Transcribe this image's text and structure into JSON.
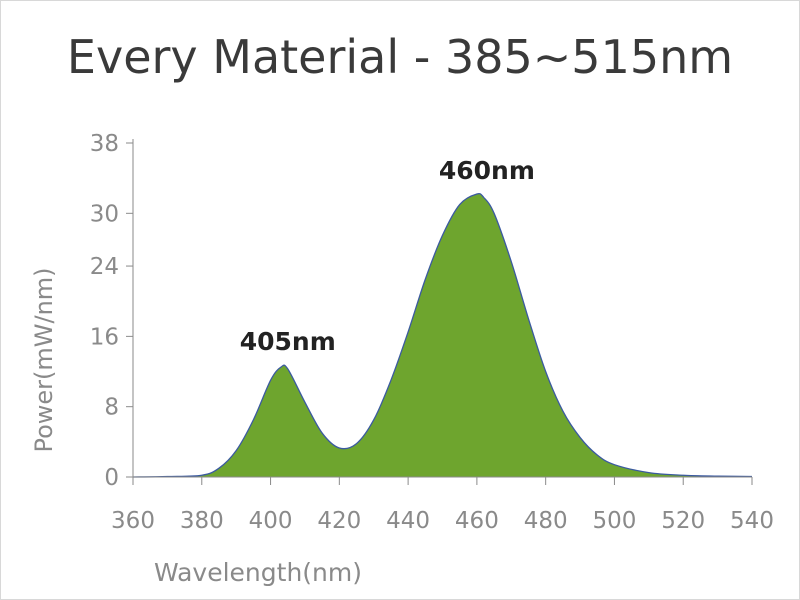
{
  "chart_data": {
    "type": "area",
    "title": "Every Material - 385~515nm",
    "xlabel": "Wavelength(nm)",
    "ylabel": "Power(mW/nm)",
    "xlim": [
      360,
      540
    ],
    "ylim": [
      0,
      38
    ],
    "xticks": [
      360,
      380,
      400,
      420,
      440,
      460,
      480,
      500,
      520,
      540
    ],
    "yticks": [
      0,
      8,
      16,
      24,
      30,
      38
    ],
    "grid": false,
    "colors": {
      "fill": "#6ea52e",
      "line": "#3b5aa0"
    },
    "series": [
      {
        "x": [
          360,
          370,
          380,
          385,
          390,
          395,
          400,
          403,
          405,
          410,
          415,
          420,
          425,
          430,
          435,
          440,
          445,
          450,
          455,
          460,
          462,
          465,
          470,
          475,
          480,
          485,
          490,
          495,
          500,
          510,
          520,
          530,
          540
        ],
        "values": [
          0,
          0.05,
          0.2,
          1.0,
          3.0,
          6.5,
          11.0,
          12.5,
          12.3,
          8.5,
          5.0,
          3.3,
          3.8,
          6.5,
          11.0,
          16.5,
          22.5,
          27.5,
          31.0,
          32.2,
          31.8,
          30.0,
          24.5,
          18.0,
          12.0,
          7.5,
          4.5,
          2.5,
          1.4,
          0.5,
          0.2,
          0.1,
          0.05
        ]
      }
    ],
    "annotations": [
      {
        "text": "405nm",
        "x": 405,
        "y": 12.5
      },
      {
        "text": "460nm",
        "x": 460,
        "y": 32.2
      }
    ]
  }
}
